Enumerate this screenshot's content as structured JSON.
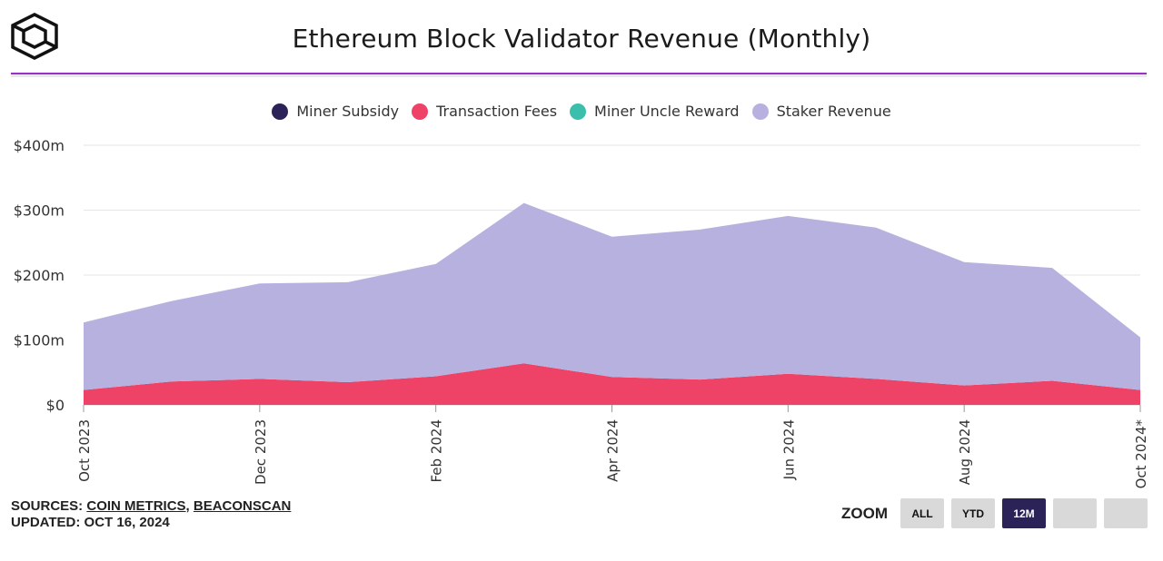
{
  "header": {
    "title": "Ethereum Block Validator Revenue (Monthly)"
  },
  "legend": [
    {
      "label": "Miner Subsidy",
      "color": "#2b2358"
    },
    {
      "label": "Transaction Fees",
      "color": "#ee4266"
    },
    {
      "label": "Miner Uncle Reward",
      "color": "#3bbfad"
    },
    {
      "label": "Staker Revenue",
      "color": "#b7b1e0"
    }
  ],
  "chart_data": {
    "type": "area",
    "stacked": true,
    "title": "Ethereum Block Validator Revenue (Monthly)",
    "x": [
      "Oct 2023",
      "Nov 2023",
      "Dec 2023",
      "Jan 2024",
      "Feb 2024",
      "Mar 2024",
      "Apr 2024",
      "May 2024",
      "Jun 2024",
      "Jul 2024",
      "Aug 2024",
      "Sep 2024",
      "Oct 2024"
    ],
    "x_tick_labels": [
      "Oct 2023",
      "Dec 2023",
      "Feb 2024",
      "Apr 2024",
      "Jun 2024",
      "Aug 2024",
      "Oct 2024*"
    ],
    "x_tick_index": [
      0,
      2,
      4,
      6,
      8,
      10,
      12
    ],
    "y_tick_labels": [
      "$0",
      "$100m",
      "$200m",
      "$300m",
      "$400m"
    ],
    "ylim": [
      0,
      400
    ],
    "grid": true,
    "legend_position": "top-center",
    "series": [
      {
        "name": "Miner Subsidy",
        "color": "#2b2358",
        "values": [
          0,
          0,
          0,
          0,
          0,
          0,
          0,
          0,
          0,
          0,
          0,
          0,
          0
        ]
      },
      {
        "name": "Transaction Fees",
        "color": "#ee4266",
        "values": [
          23,
          36,
          40,
          35,
          44,
          64,
          43,
          39,
          48,
          40,
          30,
          37,
          23
        ]
      },
      {
        "name": "Miner Uncle Reward",
        "color": "#3bbfad",
        "values": [
          0,
          0,
          0,
          0,
          0,
          0,
          0,
          0,
          0,
          0,
          0,
          0,
          0
        ]
      },
      {
        "name": "Staker Revenue",
        "color": "#b7b1e0",
        "values": [
          104,
          124,
          147,
          154,
          173,
          247,
          216,
          231,
          243,
          233,
          190,
          174,
          81
        ]
      }
    ]
  },
  "footer": {
    "sources_label": "SOURCES:",
    "source_1": "COIN METRICS",
    "source_sep": ",",
    "source_2": "BEACONSCAN",
    "updated": "UPDATED: OCT 16, 2024"
  },
  "zoom": {
    "label": "ZOOM",
    "buttons": [
      {
        "label": "ALL",
        "active": false
      },
      {
        "label": "YTD",
        "active": false
      },
      {
        "label": "12M",
        "active": true
      },
      {
        "label": "",
        "active": false
      },
      {
        "label": "",
        "active": false
      }
    ]
  },
  "colors": {
    "accent": "#9b30c8",
    "grid": "#e6e6e6",
    "active_button": "#2b2358"
  }
}
